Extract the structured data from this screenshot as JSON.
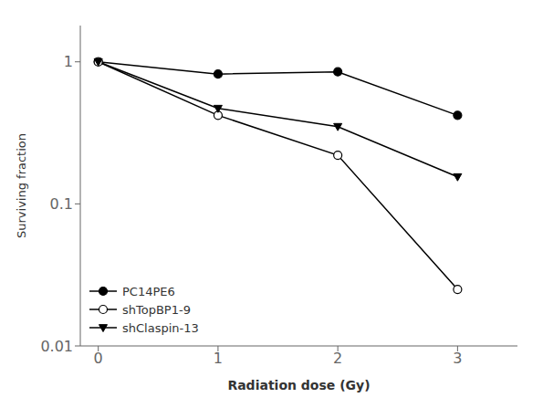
{
  "chart_data": {
    "type": "line",
    "xlabel": "Radiation dose (Gy)",
    "ylabel": "Surviving fraction",
    "x": [
      0,
      1,
      2,
      3
    ],
    "series": [
      {
        "name": "PC14PE6",
        "color": "black",
        "marker": "circle",
        "values": [
          1.0,
          0.82,
          0.85,
          0.42
        ]
      },
      {
        "name": "shTopBP1-9",
        "color": "black",
        "marker": "circle-open",
        "values": [
          1.0,
          0.42,
          0.22,
          0.025
        ]
      },
      {
        "name": "shClaspin-13",
        "color": "black",
        "marker": "triangle-down",
        "values": [
          1.0,
          0.47,
          0.35,
          0.155
        ]
      }
    ],
    "xlim": [
      -0.15,
      3.5
    ],
    "ylim": [
      0.01,
      1.8
    ],
    "xticks": [
      0,
      1,
      2,
      3
    ],
    "yticks": [
      0.01,
      0.1,
      1
    ],
    "log": "y",
    "grid": false,
    "legend": "lower left"
  }
}
